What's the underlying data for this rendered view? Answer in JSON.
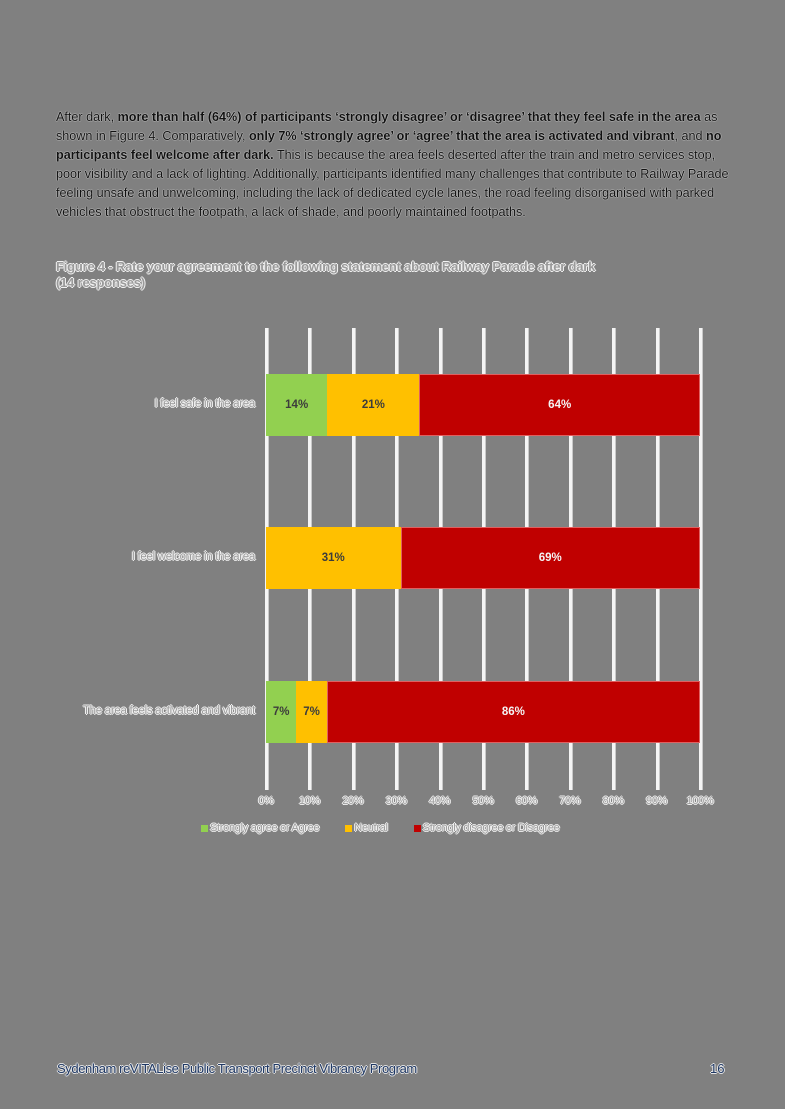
{
  "intro": {
    "runs": [
      {
        "text": "After dark, ",
        "bold": false
      },
      {
        "text": "more than half (64%) of participants ‘strongly disagree’ or ‘disagree’ that they feel safe in the area",
        "bold": true
      },
      {
        "text": " as shown in Figure 4. Comparatively, ",
        "bold": false
      },
      {
        "text": "only 7% ‘strongly agree’ or ‘agree’ that the area is activated and vibrant",
        "bold": true
      },
      {
        "text": ", and ",
        "bold": false
      },
      {
        "text": "no participants feel welcome after dark.",
        "bold": true
      },
      {
        "text": " This is because the area feels deserted after the train and metro services stop, poor visibility and a lack of lighting. Additionally, participants identified many challenges that contribute to Railway Parade feeling unsafe and unwelcoming, including the lack of dedicated cycle lanes, the road feeling disorganised with parked vehicles that obstruct the footpath, a lack of shade, and poorly maintained footpaths.",
        "bold": false
      }
    ]
  },
  "figure": {
    "title_line1": "Figure 4 - Rate your agreement to the following statement about Railway Parade after dark",
    "title_line2": "(14 responses)"
  },
  "chart_data": {
    "type": "bar",
    "orientation": "horizontal",
    "stacked": true,
    "title": "Figure 4 - Rate your agreement to the following statement about Railway Parade after dark (14 responses)",
    "categories": [
      "I feel safe in the area",
      "I feel welcome in the area",
      "The area feels activated and vibrant"
    ],
    "series": [
      {
        "name": "Strongly agree or Agree",
        "color": "#92d050",
        "values": [
          14,
          0,
          7
        ]
      },
      {
        "name": "Neutral",
        "color": "#ffc000",
        "values": [
          21,
          31,
          7
        ]
      },
      {
        "name": "Strongly disagree or Disagree",
        "color": "#c00000",
        "values": [
          64,
          69,
          86
        ]
      }
    ],
    "data_labels": [
      [
        "14%",
        "21%",
        "64%"
      ],
      [
        "",
        "31%",
        "69%"
      ],
      [
        "7%",
        "7%",
        "86%"
      ]
    ],
    "xlabel": "",
    "ylabel": "",
    "xlim": [
      0,
      100
    ],
    "x_ticks": [
      "0%",
      "10%",
      "20%",
      "30%",
      "40%",
      "50%",
      "60%",
      "70%",
      "80%",
      "90%",
      "100%"
    ],
    "grid": "vertical",
    "legend_position": "bottom"
  },
  "footer": {
    "title": "Sydenham reVITALise Public Transport Precinct Vibrancy Program",
    "page_number": "16"
  }
}
